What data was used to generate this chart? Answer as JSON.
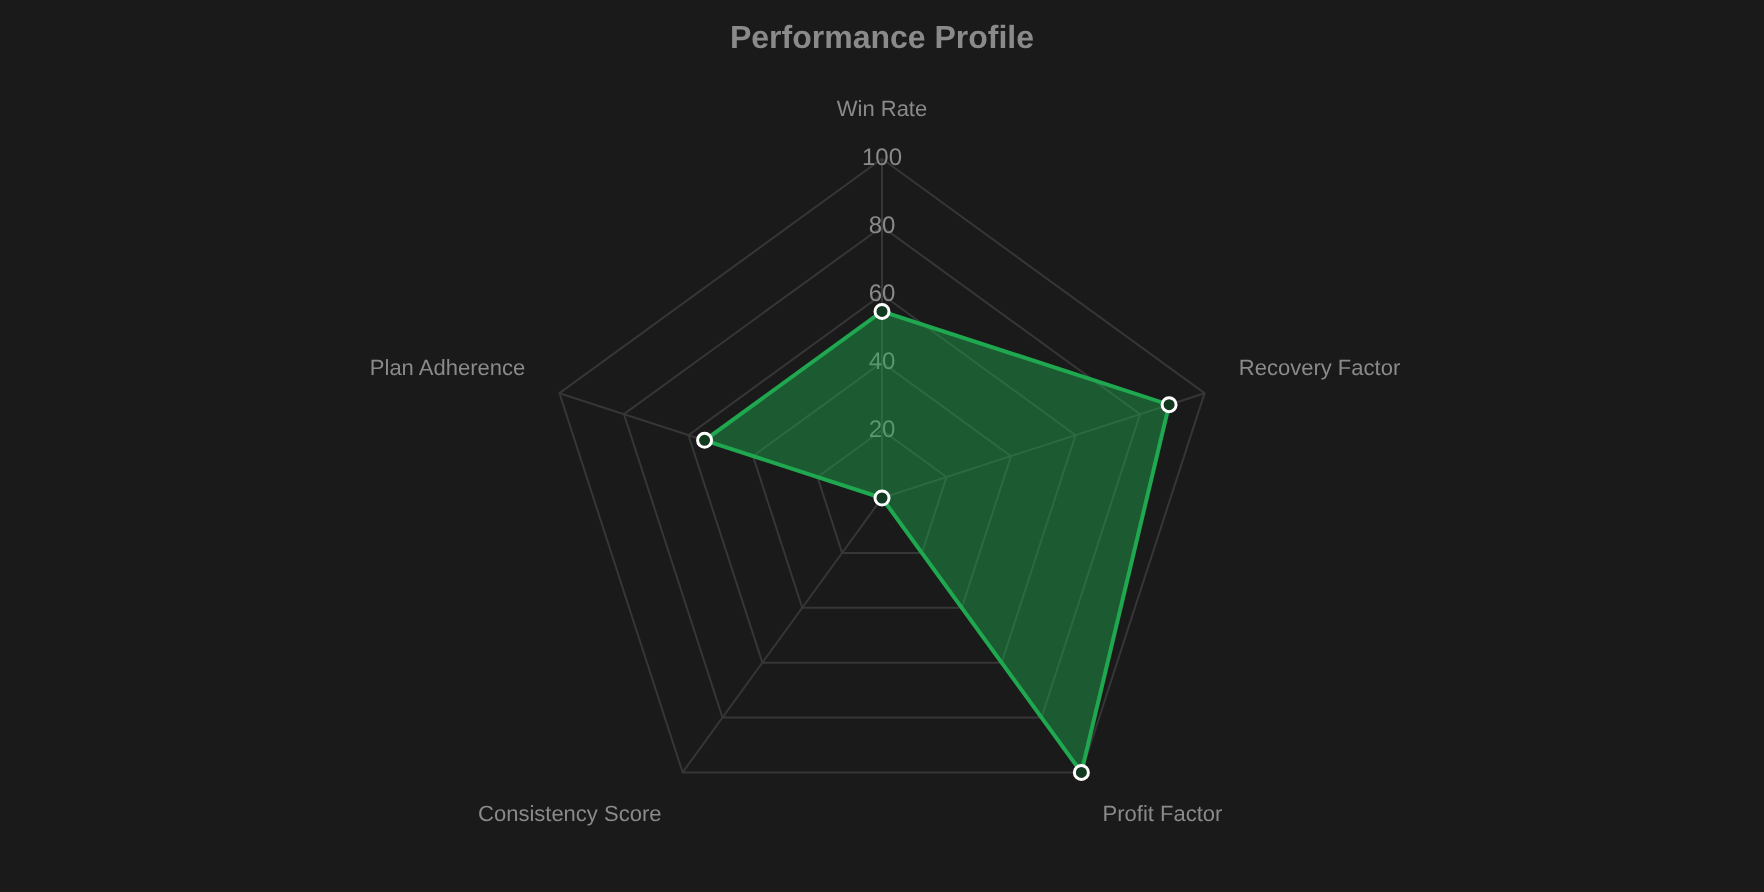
{
  "chart_data": {
    "type": "radar",
    "title": "Performance Profile",
    "categories": [
      "Win Rate",
      "Recovery Factor",
      "Profit Factor",
      "Consistency Score",
      "Plan Adherence"
    ],
    "series": [
      {
        "color": "#1fa84f",
        "values": [
          55,
          89,
          100,
          0,
          55
        ]
      }
    ],
    "ylim": [
      0,
      100
    ],
    "yticks": [
      20,
      40,
      60,
      80,
      100
    ],
    "grid": true,
    "legend": false,
    "marker": "circle"
  }
}
